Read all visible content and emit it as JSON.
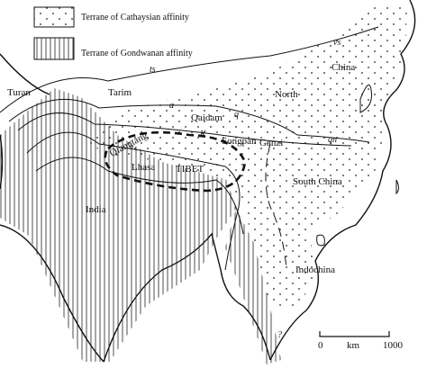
{
  "legend": [
    {
      "label": "Terrane of Cathaysian affinity"
    },
    {
      "label": "Terrane of Gondwanan affinity"
    }
  ],
  "regions": [
    "Turan",
    "Tarim",
    "North",
    "China",
    "Qaidam",
    "Qiangtang",
    "Songpan",
    "Ganzi",
    "Lhasa",
    "TIBET",
    "South China",
    "India",
    "Indochina"
  ],
  "sutures": [
    "ts",
    "vs",
    "a",
    "q",
    "K",
    "qn",
    "?"
  ],
  "scale": {
    "start": "0",
    "unit": "km",
    "end": "1000"
  }
}
